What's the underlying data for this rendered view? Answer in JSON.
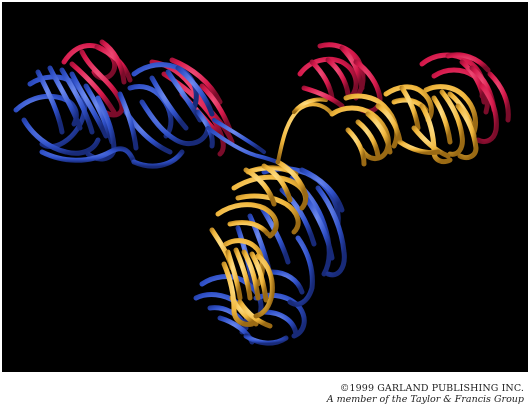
{
  "figure": {
    "subject": "ribbon-structure",
    "colors": {
      "background": "#000000",
      "light_chain": "#d4184a",
      "heavy_chain_a": "#2f50c8",
      "heavy_chain_b": "#f0b63c"
    }
  },
  "credit": {
    "copyright": "©1999 GARLAND PUBLISHING INC.",
    "member": "A member of the Taylor & Francis Group"
  }
}
